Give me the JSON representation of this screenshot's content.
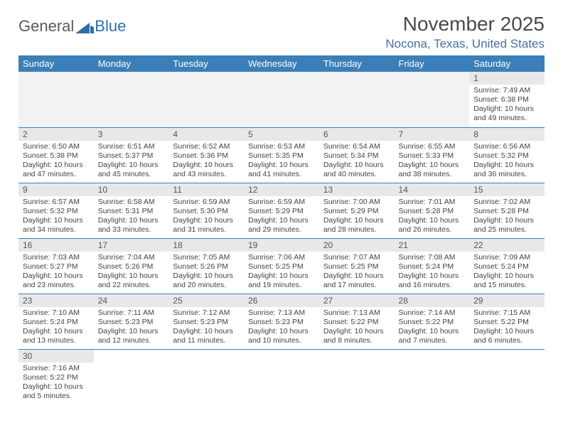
{
  "logo": {
    "text_general": "General",
    "text_blue": "Blue"
  },
  "title": "November 2025",
  "location": "Nocona, Texas, United States",
  "colors": {
    "header_bg": "#3b7fb8",
    "header_text": "#ffffff",
    "daynum_bg": "#e8e8e8",
    "border": "#3b7fb8",
    "title_color": "#4a4a4a",
    "location_color": "#4a6fa0"
  },
  "weekdays": [
    "Sunday",
    "Monday",
    "Tuesday",
    "Wednesday",
    "Thursday",
    "Friday",
    "Saturday"
  ],
  "grid": [
    [
      null,
      null,
      null,
      null,
      null,
      null,
      {
        "n": "1",
        "sr": "7:49 AM",
        "ss": "6:38 PM",
        "dl": "10 hours and 49 minutes."
      }
    ],
    [
      {
        "n": "2",
        "sr": "6:50 AM",
        "ss": "5:38 PM",
        "dl": "10 hours and 47 minutes."
      },
      {
        "n": "3",
        "sr": "6:51 AM",
        "ss": "5:37 PM",
        "dl": "10 hours and 45 minutes."
      },
      {
        "n": "4",
        "sr": "6:52 AM",
        "ss": "5:36 PM",
        "dl": "10 hours and 43 minutes."
      },
      {
        "n": "5",
        "sr": "6:53 AM",
        "ss": "5:35 PM",
        "dl": "10 hours and 41 minutes."
      },
      {
        "n": "6",
        "sr": "6:54 AM",
        "ss": "5:34 PM",
        "dl": "10 hours and 40 minutes."
      },
      {
        "n": "7",
        "sr": "6:55 AM",
        "ss": "5:33 PM",
        "dl": "10 hours and 38 minutes."
      },
      {
        "n": "8",
        "sr": "6:56 AM",
        "ss": "5:32 PM",
        "dl": "10 hours and 36 minutes."
      }
    ],
    [
      {
        "n": "9",
        "sr": "6:57 AM",
        "ss": "5:32 PM",
        "dl": "10 hours and 34 minutes."
      },
      {
        "n": "10",
        "sr": "6:58 AM",
        "ss": "5:31 PM",
        "dl": "10 hours and 33 minutes."
      },
      {
        "n": "11",
        "sr": "6:59 AM",
        "ss": "5:30 PM",
        "dl": "10 hours and 31 minutes."
      },
      {
        "n": "12",
        "sr": "6:59 AM",
        "ss": "5:29 PM",
        "dl": "10 hours and 29 minutes."
      },
      {
        "n": "13",
        "sr": "7:00 AM",
        "ss": "5:29 PM",
        "dl": "10 hours and 28 minutes."
      },
      {
        "n": "14",
        "sr": "7:01 AM",
        "ss": "5:28 PM",
        "dl": "10 hours and 26 minutes."
      },
      {
        "n": "15",
        "sr": "7:02 AM",
        "ss": "5:28 PM",
        "dl": "10 hours and 25 minutes."
      }
    ],
    [
      {
        "n": "16",
        "sr": "7:03 AM",
        "ss": "5:27 PM",
        "dl": "10 hours and 23 minutes."
      },
      {
        "n": "17",
        "sr": "7:04 AM",
        "ss": "5:26 PM",
        "dl": "10 hours and 22 minutes."
      },
      {
        "n": "18",
        "sr": "7:05 AM",
        "ss": "5:26 PM",
        "dl": "10 hours and 20 minutes."
      },
      {
        "n": "19",
        "sr": "7:06 AM",
        "ss": "5:25 PM",
        "dl": "10 hours and 19 minutes."
      },
      {
        "n": "20",
        "sr": "7:07 AM",
        "ss": "5:25 PM",
        "dl": "10 hours and 17 minutes."
      },
      {
        "n": "21",
        "sr": "7:08 AM",
        "ss": "5:24 PM",
        "dl": "10 hours and 16 minutes."
      },
      {
        "n": "22",
        "sr": "7:09 AM",
        "ss": "5:24 PM",
        "dl": "10 hours and 15 minutes."
      }
    ],
    [
      {
        "n": "23",
        "sr": "7:10 AM",
        "ss": "5:24 PM",
        "dl": "10 hours and 13 minutes."
      },
      {
        "n": "24",
        "sr": "7:11 AM",
        "ss": "5:23 PM",
        "dl": "10 hours and 12 minutes."
      },
      {
        "n": "25",
        "sr": "7:12 AM",
        "ss": "5:23 PM",
        "dl": "10 hours and 11 minutes."
      },
      {
        "n": "26",
        "sr": "7:13 AM",
        "ss": "5:23 PM",
        "dl": "10 hours and 10 minutes."
      },
      {
        "n": "27",
        "sr": "7:13 AM",
        "ss": "5:22 PM",
        "dl": "10 hours and 8 minutes."
      },
      {
        "n": "28",
        "sr": "7:14 AM",
        "ss": "5:22 PM",
        "dl": "10 hours and 7 minutes."
      },
      {
        "n": "29",
        "sr": "7:15 AM",
        "ss": "5:22 PM",
        "dl": "10 hours and 6 minutes."
      }
    ],
    [
      {
        "n": "30",
        "sr": "7:16 AM",
        "ss": "5:22 PM",
        "dl": "10 hours and 5 minutes."
      },
      null,
      null,
      null,
      null,
      null,
      null
    ]
  ],
  "labels": {
    "sunrise": "Sunrise: ",
    "sunset": "Sunset: ",
    "daylight": "Daylight: "
  }
}
